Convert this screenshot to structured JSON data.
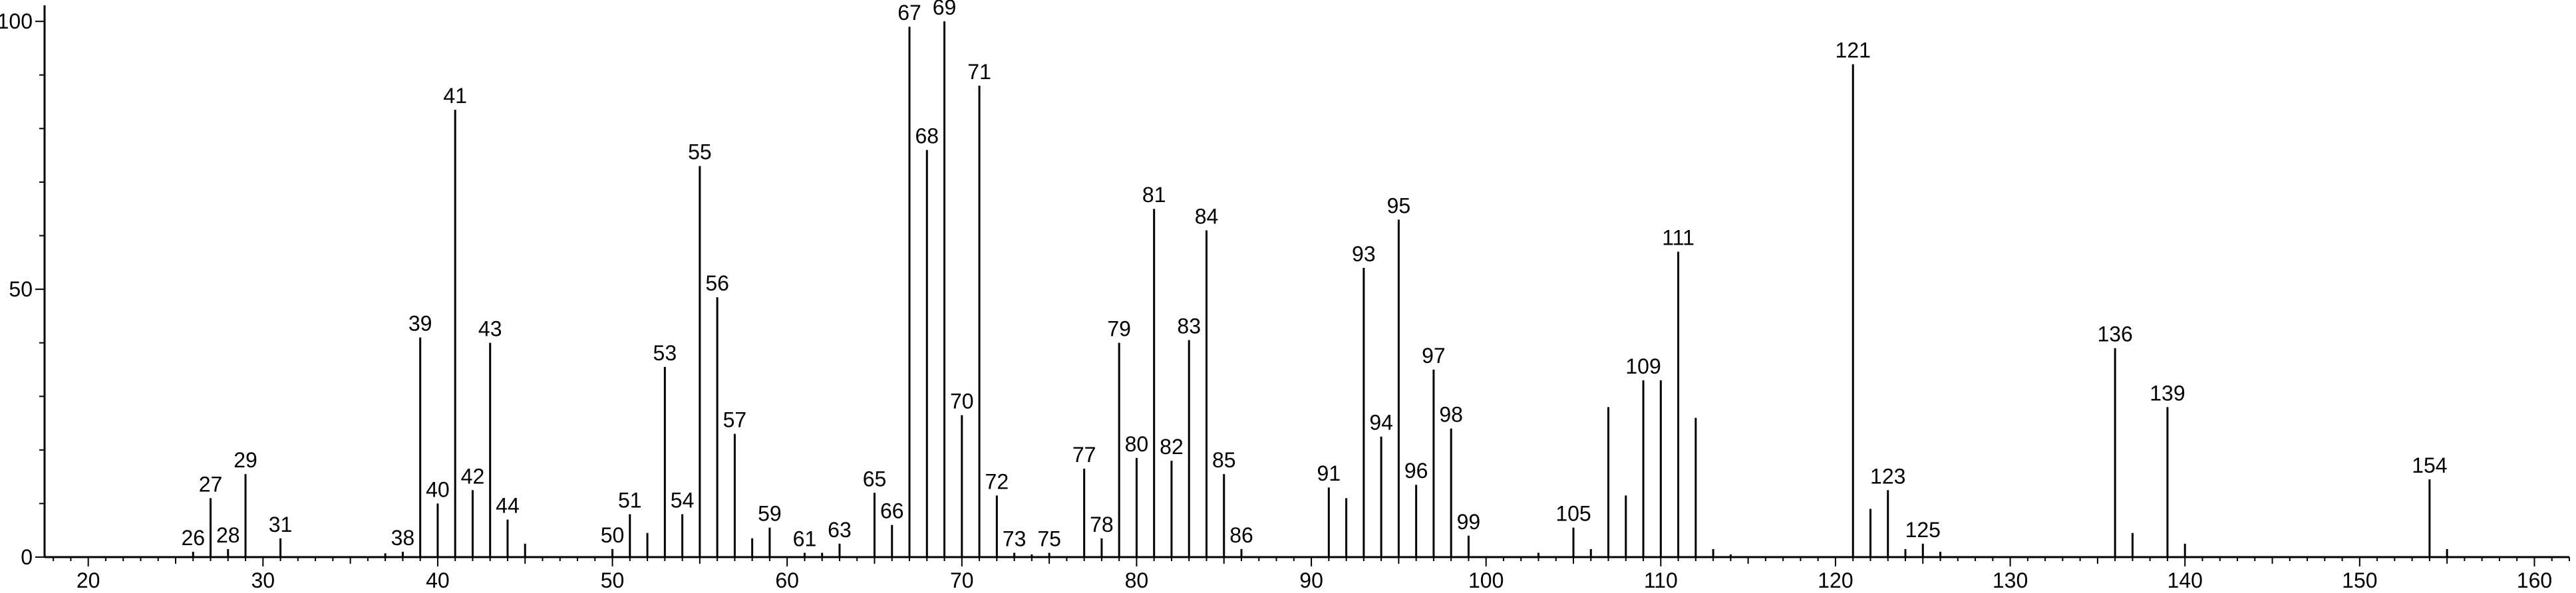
{
  "chart_data": {
    "type": "bar",
    "style": "stick",
    "title": "",
    "xlabel": "",
    "ylabel": "",
    "xlim": [
      17.5,
      162
    ],
    "ylim": [
      0,
      103
    ],
    "x_ticks": [
      20,
      30,
      40,
      50,
      60,
      70,
      80,
      90,
      100,
      110,
      120,
      130,
      140,
      150,
      160
    ],
    "y_ticks": [
      0,
      50,
      100
    ],
    "grid": false,
    "color": "#000000",
    "peaks": [
      {
        "x": 26,
        "y": 1,
        "label": "26"
      },
      {
        "x": 27,
        "y": 11,
        "label": "27"
      },
      {
        "x": 28,
        "y": 1.5,
        "label": "28"
      },
      {
        "x": 29,
        "y": 15.5,
        "label": "29"
      },
      {
        "x": 31,
        "y": 3.5,
        "label": "31"
      },
      {
        "x": 37,
        "y": 0.7,
        "label": null
      },
      {
        "x": 38,
        "y": 1,
        "label": "38"
      },
      {
        "x": 39,
        "y": 41,
        "label": "39"
      },
      {
        "x": 40,
        "y": 10,
        "label": "40"
      },
      {
        "x": 41,
        "y": 83.5,
        "label": "41"
      },
      {
        "x": 42,
        "y": 12.5,
        "label": "42"
      },
      {
        "x": 43,
        "y": 40,
        "label": "43"
      },
      {
        "x": 44,
        "y": 7,
        "label": "44"
      },
      {
        "x": 45,
        "y": 2.5,
        "label": null
      },
      {
        "x": 50,
        "y": 1.5,
        "label": "50"
      },
      {
        "x": 51,
        "y": 8,
        "label": "51"
      },
      {
        "x": 52,
        "y": 4.5,
        "label": null
      },
      {
        "x": 53,
        "y": 35.5,
        "label": "53"
      },
      {
        "x": 54,
        "y": 8,
        "label": "54"
      },
      {
        "x": 55,
        "y": 73,
        "label": "55"
      },
      {
        "x": 56,
        "y": 48.5,
        "label": "56"
      },
      {
        "x": 57,
        "y": 23,
        "label": "57"
      },
      {
        "x": 58,
        "y": 3.5,
        "label": null
      },
      {
        "x": 59,
        "y": 5.5,
        "label": "59"
      },
      {
        "x": 61,
        "y": 0.8,
        "label": "61"
      },
      {
        "x": 62,
        "y": 0.8,
        "label": null
      },
      {
        "x": 63,
        "y": 2.5,
        "label": "63"
      },
      {
        "x": 65,
        "y": 12,
        "label": "65"
      },
      {
        "x": 66,
        "y": 6,
        "label": "66"
      },
      {
        "x": 67,
        "y": 99,
        "label": "67"
      },
      {
        "x": 68,
        "y": 76,
        "label": "68"
      },
      {
        "x": 69,
        "y": 100,
        "label": "69"
      },
      {
        "x": 70,
        "y": 26.5,
        "label": "70"
      },
      {
        "x": 71,
        "y": 88,
        "label": "71"
      },
      {
        "x": 72,
        "y": 11.5,
        "label": "72"
      },
      {
        "x": 73,
        "y": 0.8,
        "label": "73"
      },
      {
        "x": 74,
        "y": 0.5,
        "label": null
      },
      {
        "x": 75,
        "y": 0.8,
        "label": "75"
      },
      {
        "x": 77,
        "y": 16.5,
        "label": "77"
      },
      {
        "x": 78,
        "y": 3.5,
        "label": "78"
      },
      {
        "x": 79,
        "y": 40,
        "label": "79"
      },
      {
        "x": 80,
        "y": 18.5,
        "label": "80"
      },
      {
        "x": 81,
        "y": 65,
        "label": "81"
      },
      {
        "x": 82,
        "y": 18,
        "label": "82"
      },
      {
        "x": 83,
        "y": 40.5,
        "label": "83"
      },
      {
        "x": 84,
        "y": 61,
        "label": "84"
      },
      {
        "x": 85,
        "y": 15.5,
        "label": "85"
      },
      {
        "x": 86,
        "y": 1.5,
        "label": "86"
      },
      {
        "x": 91,
        "y": 13,
        "label": "91"
      },
      {
        "x": 92,
        "y": 11,
        "label": null
      },
      {
        "x": 93,
        "y": 54,
        "label": "93"
      },
      {
        "x": 94,
        "y": 22.5,
        "label": "94"
      },
      {
        "x": 95,
        "y": 63,
        "label": "95"
      },
      {
        "x": 96,
        "y": 13.5,
        "label": "96"
      },
      {
        "x": 97,
        "y": 35,
        "label": "97"
      },
      {
        "x": 98,
        "y": 24,
        "label": "98"
      },
      {
        "x": 99,
        "y": 4,
        "label": "99"
      },
      {
        "x": 103,
        "y": 0.8,
        "label": null
      },
      {
        "x": 105,
        "y": 5.5,
        "label": "105"
      },
      {
        "x": 106,
        "y": 1.5,
        "label": null
      },
      {
        "x": 107,
        "y": 28,
        "label": null
      },
      {
        "x": 108,
        "y": 11.5,
        "label": null
      },
      {
        "x": 109,
        "y": 33,
        "label": "109"
      },
      {
        "x": 110,
        "y": 33,
        "label": null
      },
      {
        "x": 111,
        "y": 57,
        "label": "111"
      },
      {
        "x": 112,
        "y": 26,
        "label": null
      },
      {
        "x": 113,
        "y": 1.5,
        "label": null
      },
      {
        "x": 114,
        "y": 0.5,
        "label": null
      },
      {
        "x": 121,
        "y": 92,
        "label": "121"
      },
      {
        "x": 122,
        "y": 9,
        "label": null
      },
      {
        "x": 123,
        "y": 12.5,
        "label": "123"
      },
      {
        "x": 124,
        "y": 1.5,
        "label": null
      },
      {
        "x": 125,
        "y": 2.5,
        "label": "125"
      },
      {
        "x": 126,
        "y": 1,
        "label": null
      },
      {
        "x": 136,
        "y": 39,
        "label": "136"
      },
      {
        "x": 137,
        "y": 4.5,
        "label": null
      },
      {
        "x": 139,
        "y": 28,
        "label": "139"
      },
      {
        "x": 140,
        "y": 2.5,
        "label": null
      },
      {
        "x": 154,
        "y": 14.5,
        "label": "154"
      },
      {
        "x": 155,
        "y": 1.5,
        "label": null
      }
    ]
  }
}
